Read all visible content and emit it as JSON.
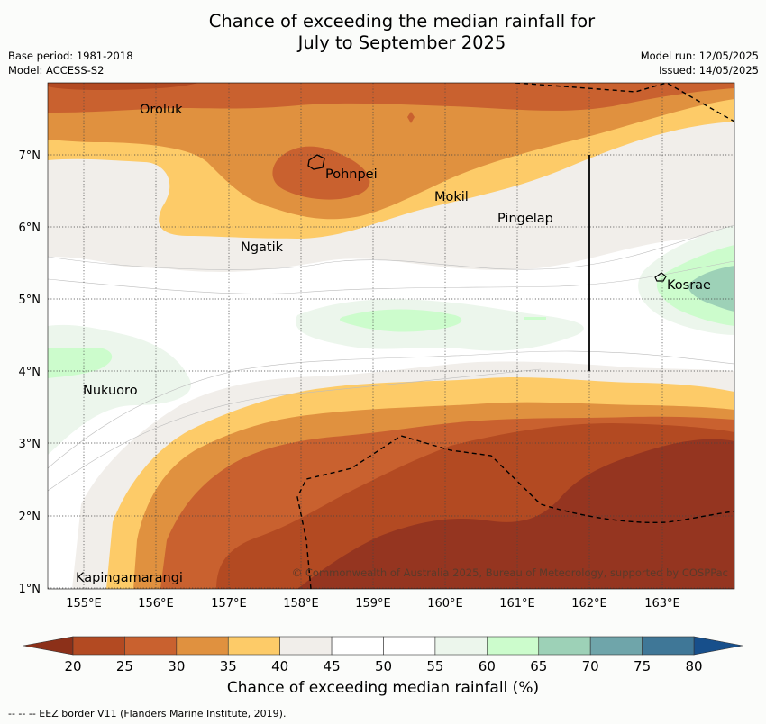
{
  "title_line1": "Chance of exceeding the median rainfall for",
  "title_line2": "July to September 2025",
  "base_period": "Base period: 1981-2018",
  "model": "Model: ACCESS-S2",
  "model_run": "Model run: 12/05/2025",
  "issued": "Issued: 14/05/2025",
  "map": {
    "lat_labels": [
      "7°N",
      "6°N",
      "5°N",
      "4°N",
      "3°N",
      "2°N",
      "1°N"
    ],
    "lon_labels": [
      "155°E",
      "156°E",
      "157°E",
      "158°E",
      "159°E",
      "160°E",
      "161°E",
      "162°E",
      "163°E"
    ],
    "places": [
      {
        "name": "Oroluk"
      },
      {
        "name": "Pohnpei"
      },
      {
        "name": "Mokil"
      },
      {
        "name": "Pingelap"
      },
      {
        "name": "Ngatik"
      },
      {
        "name": "Kosrae"
      },
      {
        "name": "Nukuoro"
      },
      {
        "name": "Kapingamarangi"
      }
    ],
    "copyright": "© Commonwealth of Australia 2025, Bureau of Meteorology, supported by COSPPac"
  },
  "legend": {
    "ticks": [
      "20",
      "25",
      "30",
      "35",
      "40",
      "45",
      "50",
      "55",
      "60",
      "65",
      "70",
      "75",
      "80"
    ],
    "colors": [
      "#b34a22",
      "#c9612f",
      "#e0913f",
      "#fdcb68",
      "#f1eeea",
      "#ffffff",
      "#ffffff",
      "#ecf6ec",
      "#ccfccc",
      "#9dd1b7",
      "#6fa5aa",
      "#3f7797"
    ],
    "low_color": "#8c3019",
    "high_color": "#174f8b",
    "title": "Chance of exceeding median rainfall (%)"
  },
  "footnote": "--  --  -- EEZ border V11 (Flanders Marine Institute, 2019)."
}
